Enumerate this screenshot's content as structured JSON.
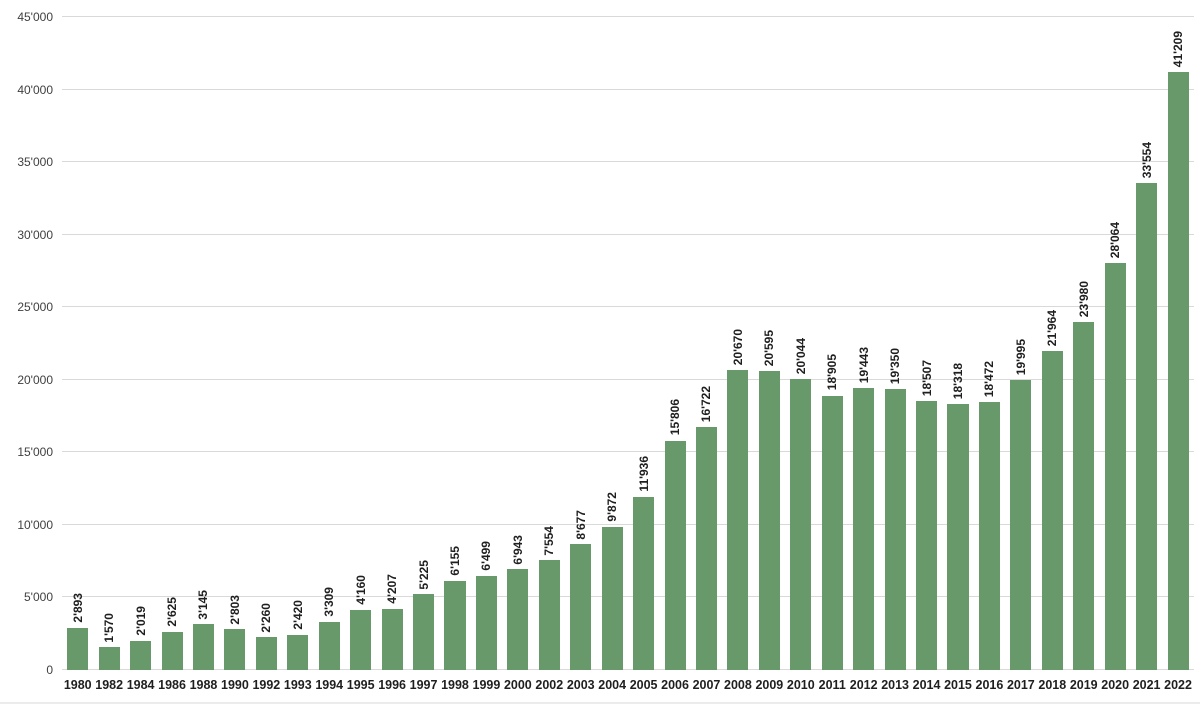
{
  "chart_data": {
    "type": "bar",
    "title": "",
    "xlabel": "",
    "ylabel": "",
    "categories": [
      "1980",
      "1982",
      "1984",
      "1986",
      "1988",
      "1990",
      "1992",
      "1993",
      "1994",
      "1995",
      "1996",
      "1997",
      "1998",
      "1999",
      "2000",
      "2002",
      "2003",
      "2004",
      "2005",
      "2006",
      "2007",
      "2008",
      "2009",
      "2010",
      "2011",
      "2012",
      "2013",
      "2014",
      "2015",
      "2016",
      "2017",
      "2018",
      "2019",
      "2020",
      "2021",
      "2022"
    ],
    "values": [
      2893,
      1570,
      2019,
      2625,
      3145,
      2803,
      2260,
      2420,
      3309,
      4160,
      4207,
      5225,
      6155,
      6499,
      6943,
      7554,
      8677,
      9872,
      11936,
      15806,
      16722,
      20670,
      20595,
      20044,
      18905,
      19443,
      19350,
      18507,
      18318,
      18472,
      19995,
      21964,
      23980,
      28064,
      33554,
      41209
    ],
    "value_labels": [
      "2'893",
      "1'570",
      "2'019",
      "2'625",
      "3'145",
      "2'803",
      "2'260",
      "2'420",
      "3'309",
      "4'160",
      "4'207",
      "5'225",
      "6'155",
      "6'499",
      "6'943",
      "7'554",
      "8'677",
      "9'872",
      "11'936",
      "15'806",
      "16'722",
      "20'670",
      "20'595",
      "20'044",
      "18'905",
      "19'443",
      "19'350",
      "18'507",
      "18'318",
      "18'472",
      "19'995",
      "21'964",
      "23'980",
      "28'064",
      "33'554",
      "41'209"
    ],
    "ylim": [
      0,
      45000
    ],
    "ytick_step": 5000,
    "ytick_values": [
      0,
      5000,
      10000,
      15000,
      20000,
      25000,
      30000,
      35000,
      40000,
      45000
    ],
    "ytick_labels": [
      "0",
      "5'000",
      "10'000",
      "15'000",
      "20'000",
      "25'000",
      "30'000",
      "35'000",
      "40'000",
      "45'000"
    ],
    "grid": true,
    "legend": "none",
    "bar_color": "#67996b",
    "gridline_color": "#d9d9d9",
    "value_label_color": "#1f1f1f",
    "axis_tick_color": "#404040"
  }
}
